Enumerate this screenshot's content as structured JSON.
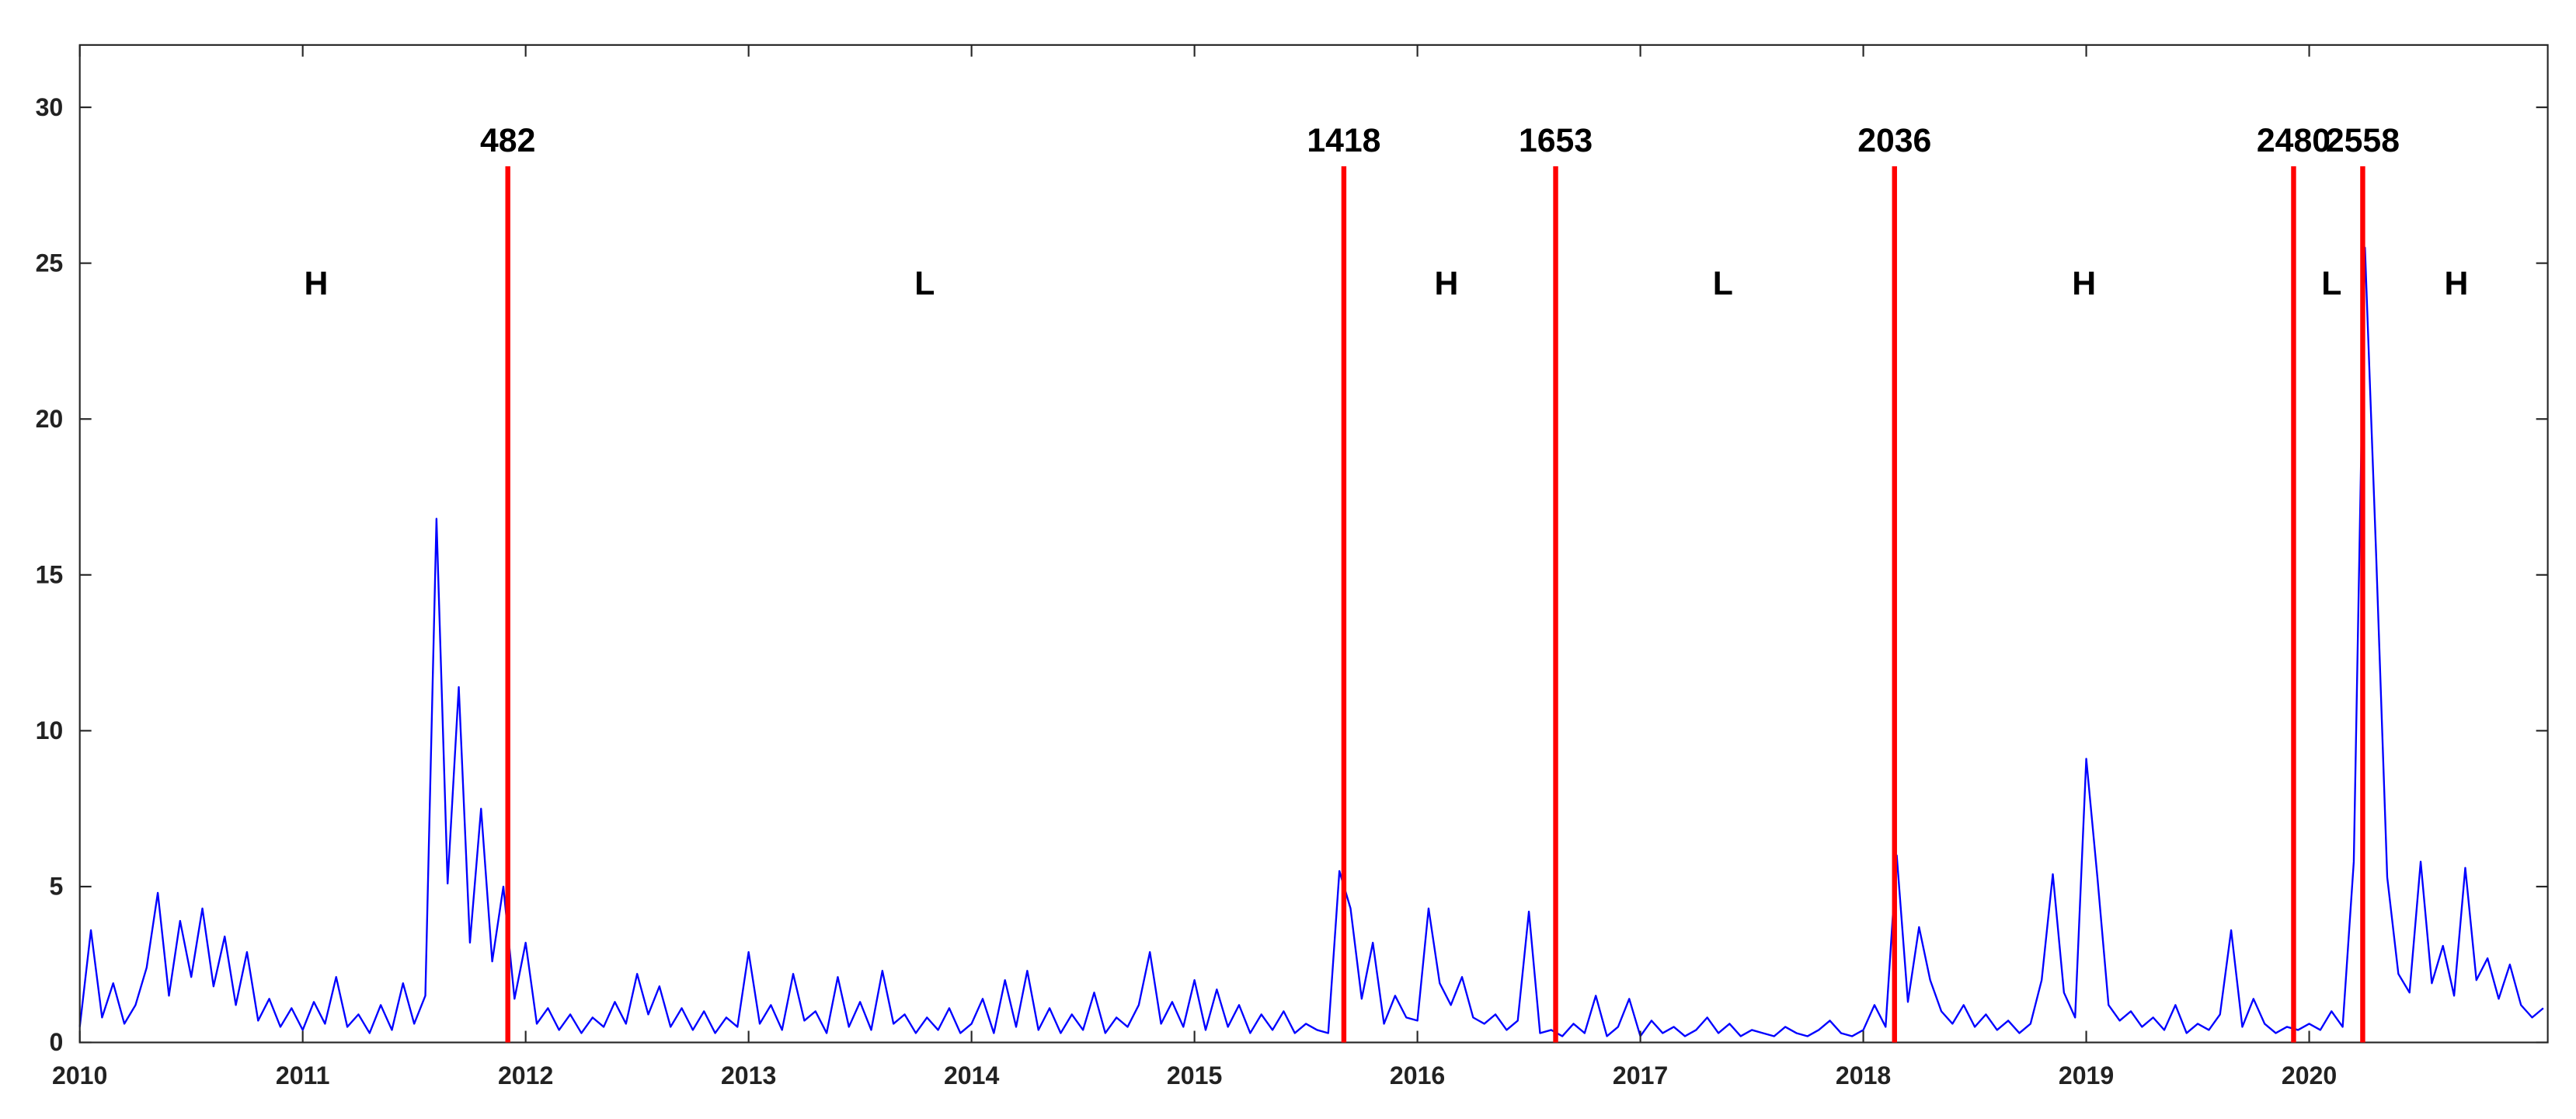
{
  "chart_data": {
    "type": "line",
    "color": "#0000ff",
    "x": [
      2010,
      2010.05,
      2010.1,
      2010.15,
      2010.2,
      2010.25,
      2010.3,
      2010.35,
      2010.4,
      2010.45,
      2010.5,
      2010.55,
      2010.6,
      2010.65,
      2010.7,
      2010.75,
      2010.8,
      2010.85,
      2010.9,
      2010.95,
      2011,
      2011.05,
      2011.1,
      2011.15,
      2011.2,
      2011.25,
      2011.3,
      2011.35,
      2011.4,
      2011.45,
      2011.5,
      2011.55,
      2011.6,
      2011.65,
      2011.7,
      2011.75,
      2011.8,
      2011.85,
      2011.9,
      2011.95,
      2012,
      2012.05,
      2012.1,
      2012.15,
      2012.2,
      2012.25,
      2012.3,
      2012.35,
      2012.4,
      2012.45,
      2012.5,
      2012.55,
      2012.6,
      2012.65,
      2012.7,
      2012.75,
      2012.8,
      2012.85,
      2012.9,
      2012.95,
      2013,
      2013.05,
      2013.1,
      2013.15,
      2013.2,
      2013.25,
      2013.3,
      2013.35,
      2013.4,
      2013.45,
      2013.5,
      2013.55,
      2013.6,
      2013.65,
      2013.7,
      2013.75,
      2013.8,
      2013.85,
      2013.9,
      2013.95,
      2014,
      2014.05,
      2014.1,
      2014.15,
      2014.2,
      2014.25,
      2014.3,
      2014.35,
      2014.4,
      2014.45,
      2014.5,
      2014.55,
      2014.6,
      2014.65,
      2014.7,
      2014.75,
      2014.8,
      2014.85,
      2014.9,
      2014.95,
      2015,
      2015.05,
      2015.1,
      2015.15,
      2015.2,
      2015.25,
      2015.3,
      2015.35,
      2015.4,
      2015.45,
      2015.5,
      2015.55,
      2015.6,
      2015.65,
      2015.7,
      2015.75,
      2015.8,
      2015.85,
      2015.9,
      2015.95,
      2016,
      2016.05,
      2016.1,
      2016.15,
      2016.2,
      2016.25,
      2016.3,
      2016.35,
      2016.4,
      2016.45,
      2016.5,
      2016.55,
      2016.6,
      2016.65,
      2016.7,
      2016.75,
      2016.8,
      2016.85,
      2016.9,
      2016.95,
      2017,
      2017.05,
      2017.1,
      2017.15,
      2017.2,
      2017.25,
      2017.3,
      2017.35,
      2017.4,
      2017.45,
      2017.5,
      2017.55,
      2017.6,
      2017.65,
      2017.7,
      2017.75,
      2017.8,
      2017.85,
      2017.9,
      2017.95,
      2018,
      2018.05,
      2018.1,
      2018.15,
      2018.2,
      2018.25,
      2018.3,
      2018.35,
      2018.4,
      2018.45,
      2018.5,
      2018.55,
      2018.6,
      2018.65,
      2018.7,
      2018.75,
      2018.8,
      2018.85,
      2018.9,
      2018.95,
      2019,
      2019.05,
      2019.1,
      2019.15,
      2019.2,
      2019.25,
      2019.3,
      2019.35,
      2019.4,
      2019.45,
      2019.5,
      2019.55,
      2019.6,
      2019.65,
      2019.7,
      2019.75,
      2019.8,
      2019.85,
      2019.9,
      2019.95,
      2020,
      2020.05,
      2020.1,
      2020.15,
      2020.2,
      2020.25,
      2020.3,
      2020.35,
      2020.4,
      2020.45,
      2020.5,
      2020.55,
      2020.6,
      2020.65,
      2020.7,
      2020.75,
      2020.8,
      2020.85,
      2020.9,
      2020.95,
      2021,
      2021.05
    ],
    "values": [
      0.5,
      3.6,
      0.8,
      1.9,
      0.6,
      1.2,
      2.4,
      4.8,
      1.5,
      3.9,
      2.1,
      4.3,
      1.8,
      3.4,
      1.2,
      2.9,
      0.7,
      1.4,
      0.5,
      1.1,
      0.4,
      1.3,
      0.6,
      2.1,
      0.5,
      0.9,
      0.3,
      1.2,
      0.4,
      1.9,
      0.6,
      1.5,
      16.8,
      5.1,
      11.4,
      3.2,
      7.5,
      2.6,
      5.0,
      1.4,
      3.2,
      0.6,
      1.1,
      0.4,
      0.9,
      0.3,
      0.8,
      0.5,
      1.3,
      0.6,
      2.2,
      0.9,
      1.8,
      0.5,
      1.1,
      0.4,
      1.0,
      0.3,
      0.8,
      0.5,
      2.9,
      0.6,
      1.2,
      0.4,
      2.2,
      0.7,
      1.0,
      0.3,
      2.1,
      0.5,
      1.3,
      0.4,
      2.3,
      0.6,
      0.9,
      0.3,
      0.8,
      0.4,
      1.1,
      0.3,
      0.6,
      1.4,
      0.3,
      2.0,
      0.5,
      2.3,
      0.4,
      1.1,
      0.3,
      0.9,
      0.4,
      1.6,
      0.3,
      0.8,
      0.5,
      1.2,
      2.9,
      0.6,
      1.3,
      0.5,
      2.0,
      0.4,
      1.7,
      0.5,
      1.2,
      0.3,
      0.9,
      0.4,
      1.0,
      0.3,
      0.6,
      0.4,
      0.3,
      5.5,
      4.3,
      1.4,
      3.2,
      0.6,
      1.5,
      0.8,
      0.7,
      4.3,
      1.9,
      1.2,
      2.1,
      0.8,
      0.6,
      0.9,
      0.4,
      0.7,
      4.2,
      0.3,
      0.4,
      0.2,
      0.6,
      0.3,
      1.5,
      0.2,
      0.5,
      1.4,
      0.2,
      0.7,
      0.3,
      0.5,
      0.2,
      0.4,
      0.8,
      0.3,
      0.6,
      0.2,
      0.4,
      0.3,
      0.2,
      0.5,
      0.3,
      0.2,
      0.4,
      0.7,
      0.3,
      0.2,
      0.4,
      1.2,
      0.5,
      6.0,
      1.3,
      3.7,
      2.0,
      1.0,
      0.6,
      1.2,
      0.5,
      0.9,
      0.4,
      0.7,
      0.3,
      0.6,
      2.0,
      5.4,
      1.6,
      0.8,
      9.1,
      5.3,
      1.2,
      0.7,
      1.0,
      0.5,
      0.8,
      0.4,
      1.2,
      0.3,
      0.6,
      0.4,
      0.9,
      3.6,
      0.5,
      1.4,
      0.6,
      0.3,
      0.5,
      0.4,
      0.6,
      0.4,
      1.0,
      0.5,
      5.8,
      25.5,
      15.7,
      5.3,
      2.2,
      1.6,
      5.8,
      1.9,
      3.1,
      1.5,
      5.6,
      2.0,
      2.7,
      1.4,
      2.5,
      1.2,
      0.8,
      1.1
    ],
    "xlim": [
      2010,
      2021.07
    ],
    "xticks": [
      2010,
      2011,
      2012,
      2013,
      2014,
      2015,
      2016,
      2017,
      2018,
      2019,
      2020
    ],
    "ylim": [
      0,
      32
    ],
    "yticks": [
      0,
      5,
      10,
      15,
      20,
      25,
      30
    ],
    "break_color": "#ff0000",
    "breaks": [
      {
        "x": 2011.92,
        "label": "482"
      },
      {
        "x": 2015.67,
        "label": "1418"
      },
      {
        "x": 2016.62,
        "label": "1653"
      },
      {
        "x": 2018.14,
        "label": "2036"
      },
      {
        "x": 2019.93,
        "label": "2480"
      },
      {
        "x": 2020.24,
        "label": "2558"
      }
    ],
    "regimes": [
      {
        "x": 2011.06,
        "label": "H"
      },
      {
        "x": 2013.79,
        "label": "L"
      },
      {
        "x": 2016.13,
        "label": "H"
      },
      {
        "x": 2017.37,
        "label": "L"
      },
      {
        "x": 2018.99,
        "label": "H"
      },
      {
        "x": 2020.1,
        "label": "L"
      },
      {
        "x": 2020.66,
        "label": "H"
      }
    ]
  }
}
